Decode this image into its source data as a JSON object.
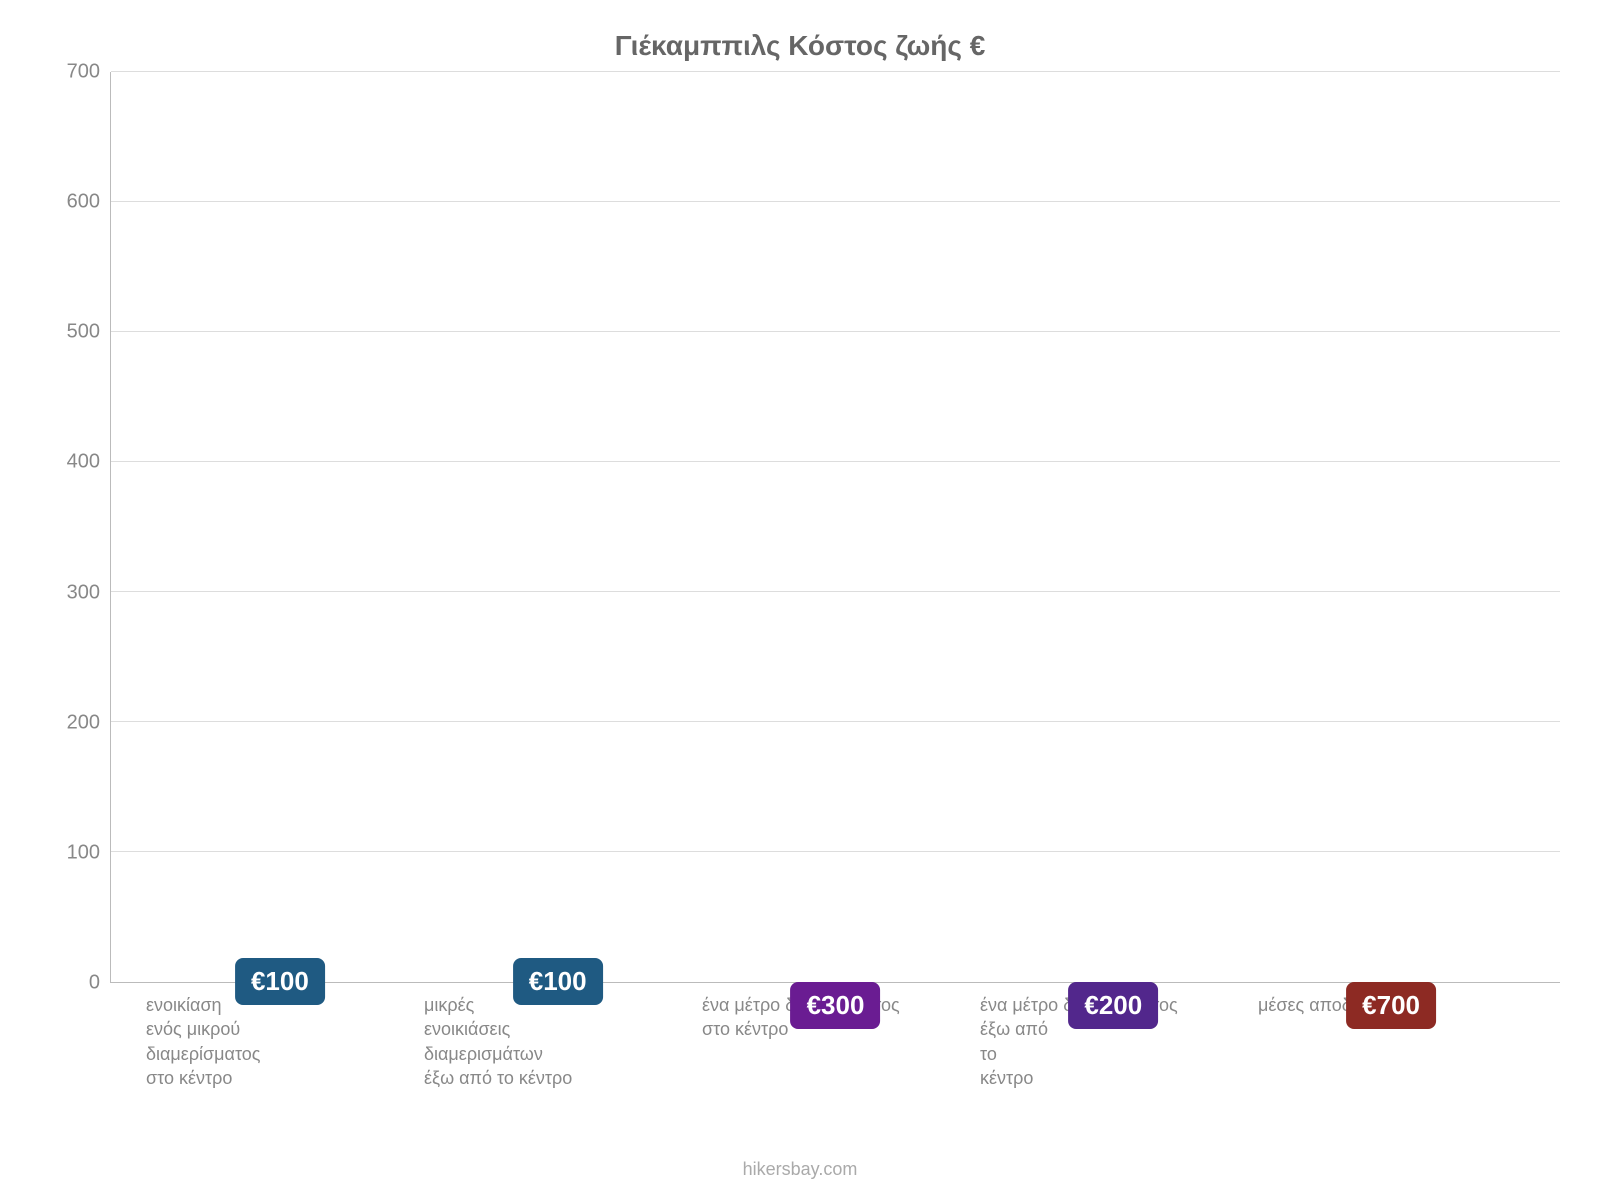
{
  "chart": {
    "type": "bar",
    "title": "Γιέκαμππιλς Κόστος ζωής €",
    "title_fontsize": 28,
    "title_color": "#666666",
    "categories": [
      "ενοικίαση\nενός μικρού\nδιαμερίσματος\nστο κέντρο",
      "μικρές\nενοικιάσεις\nδιαμερισμάτων\nέξω από το κέντρο",
      "ένα μέτρο διαμερίσματος\nστο κέντρο",
      "ένα μέτρο διαμερίσματος\nέξω από\nτο\nκέντρο",
      "μέσες αποδοχές"
    ],
    "values": [
      100,
      100,
      300,
      200,
      700
    ],
    "value_labels": [
      "€100",
      "€100",
      "€300",
      "€200",
      "€700"
    ],
    "bar_colors": [
      "#3498db",
      "#3498db",
      "#b23aee",
      "#8e44ec",
      "#e74c3c"
    ],
    "label_bg_colors": [
      "#1f5a82",
      "#1f5a82",
      "#6a1c92",
      "#52278c",
      "#8d2a23"
    ],
    "bar_width_pct": 72,
    "ylim": [
      0,
      700
    ],
    "ytick_step": 100,
    "yticks": [
      0,
      100,
      200,
      300,
      400,
      500,
      600,
      700
    ],
    "axis_color": "#bbbbbb",
    "grid_color": "#dddddd",
    "tick_label_color": "#888888",
    "tick_fontsize": 20,
    "xlabel_color": "#888888",
    "xlabel_fontsize": 18,
    "bar_label_fontsize": 26,
    "background_color": "#ffffff"
  },
  "credit": {
    "text": "hikersbay.com",
    "color": "#aaaaaa",
    "fontsize": 18
  }
}
